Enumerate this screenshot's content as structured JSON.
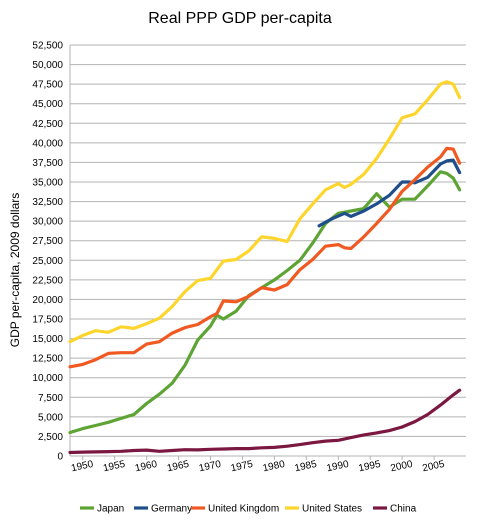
{
  "chart_data": {
    "type": "line",
    "title": "Real PPP GDP per-capita",
    "ylabel": "GDP per-capita, 2009 dollars",
    "xlabel": "",
    "xlim": [
      1948,
      2010
    ],
    "ylim": [
      0,
      52500
    ],
    "yticks": [
      0,
      2500,
      5000,
      7500,
      10000,
      12500,
      15000,
      17500,
      20000,
      22500,
      25000,
      27500,
      30000,
      32500,
      35000,
      37500,
      40000,
      42500,
      45000,
      47500,
      50000,
      52500
    ],
    "ytick_labels": [
      "0",
      "2,500",
      "5,000",
      "7,500",
      "10,000",
      "12,500",
      "15,000",
      "17,500",
      "20,000",
      "22,500",
      "25,000",
      "27,500",
      "30,000",
      "32,500",
      "35,000",
      "37,500",
      "40,000",
      "42,500",
      "45,000",
      "47,500",
      "50,000",
      "52,500"
    ],
    "xticks": [
      1950,
      1955,
      1960,
      1965,
      1970,
      1975,
      1980,
      1985,
      1990,
      1995,
      2000,
      2005
    ],
    "xtick_labels": [
      "1950",
      "1955",
      "1960",
      "1965",
      "1970",
      "1975",
      "1980",
      "1985",
      "1990",
      "1995",
      "2000",
      "2005"
    ],
    "grid": "horizontal",
    "legend_position": "bottom",
    "series": [
      {
        "name": "Japan",
        "color": "#5ea434",
        "x": [
          1948,
          1950,
          1952,
          1954,
          1956,
          1958,
          1960,
          1962,
          1964,
          1966,
          1968,
          1970,
          1971,
          1972,
          1974,
          1976,
          1978,
          1980,
          1982,
          1984,
          1986,
          1988,
          1990,
          1992,
          1994,
          1996,
          1998,
          2000,
          2002,
          2004,
          2006,
          2007,
          2008,
          2009
        ],
        "y": [
          3000,
          3500,
          3900,
          4300,
          4800,
          5300,
          6700,
          7900,
          9300,
          11600,
          14800,
          16600,
          18000,
          17500,
          18500,
          20500,
          21500,
          22500,
          23700,
          25000,
          27200,
          29700,
          31000,
          31300,
          31600,
          33500,
          31800,
          32800,
          32800,
          34500,
          36300,
          36100,
          35500,
          34000
        ]
      },
      {
        "name": "Germany",
        "color": "#1f4e8a",
        "x": [
          1987,
          1989,
          1991,
          1992,
          1994,
          1996,
          1998,
          2000,
          2001,
          2002,
          2004,
          2006,
          2007,
          2008,
          2009
        ],
        "y": [
          29400,
          30300,
          31000,
          30600,
          31300,
          32200,
          33300,
          35000,
          35000,
          34900,
          35600,
          37300,
          37700,
          37800,
          36200
        ]
      },
      {
        "name": "United Kingdom",
        "color": "#f05a22",
        "x": [
          1948,
          1950,
          1952,
          1954,
          1956,
          1958,
          1960,
          1962,
          1964,
          1966,
          1968,
          1970,
          1971,
          1972,
          1974,
          1976,
          1978,
          1980,
          1982,
          1984,
          1986,
          1988,
          1990,
          1991,
          1992,
          1994,
          1996,
          1998,
          2000,
          2002,
          2004,
          2006,
          2007,
          2008,
          2009
        ],
        "y": [
          11400,
          11700,
          12300,
          13100,
          13200,
          13200,
          14300,
          14600,
          15700,
          16400,
          16800,
          17800,
          18200,
          19800,
          19700,
          20400,
          21500,
          21200,
          21900,
          23800,
          25100,
          26800,
          27000,
          26600,
          26500,
          28000,
          29700,
          31500,
          33800,
          35300,
          36900,
          38200,
          39300,
          39200,
          37400
        ]
      },
      {
        "name": "United States",
        "color": "#fed52c",
        "x": [
          1948,
          1950,
          1952,
          1954,
          1956,
          1958,
          1960,
          1962,
          1964,
          1966,
          1968,
          1970,
          1972,
          1974,
          1976,
          1978,
          1980,
          1982,
          1984,
          1986,
          1988,
          1990,
          1991,
          1992,
          1994,
          1996,
          1998,
          2000,
          2002,
          2004,
          2006,
          2007,
          2008,
          2009
        ],
        "y": [
          14600,
          15400,
          16000,
          15800,
          16500,
          16300,
          16900,
          17600,
          19100,
          21000,
          22400,
          22700,
          24900,
          25100,
          26200,
          28000,
          27800,
          27400,
          30300,
          32200,
          34000,
          34800,
          34300,
          34700,
          36000,
          38000,
          40500,
          43200,
          43700,
          45500,
          47500,
          47800,
          47500,
          45800
        ]
      },
      {
        "name": "China",
        "color": "#7b1841",
        "x": [
          1948,
          1950,
          1952,
          1954,
          1956,
          1958,
          1960,
          1962,
          1964,
          1966,
          1968,
          1970,
          1972,
          1974,
          1976,
          1978,
          1980,
          1982,
          1984,
          1986,
          1988,
          1990,
          1992,
          1994,
          1996,
          1998,
          2000,
          2002,
          2004,
          2006,
          2008,
          2009
        ],
        "y": [
          450,
          500,
          520,
          560,
          600,
          700,
          750,
          600,
          700,
          800,
          780,
          850,
          900,
          950,
          950,
          1050,
          1100,
          1250,
          1450,
          1700,
          1900,
          2000,
          2350,
          2700,
          2950,
          3250,
          3700,
          4400,
          5300,
          6500,
          7800,
          8400
        ]
      }
    ]
  }
}
